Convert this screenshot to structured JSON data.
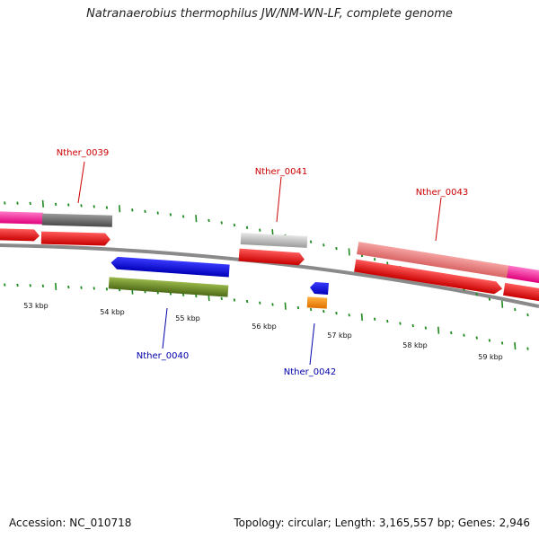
{
  "title": "Natranaerobius thermophilus JW/NM-WN-LF, complete genome",
  "footer": {
    "accession": "Accession: NC_010718",
    "summary": "Topology: circular; Length: 3,165,557 bp; Genes: 2,946"
  },
  "colors": {
    "background": "#ffffff",
    "tick": "#1f8a1f",
    "backbone": "#8a8a8a",
    "label_top": "#cc0000",
    "label_bottom": "#0000aa"
  },
  "kbp_labels": [
    "53 kbp",
    "54 kbp",
    "55 kbp",
    "56 kbp",
    "57 kbp",
    "58 kbp",
    "59 kbp"
  ],
  "gene_labels": [
    "Nther_0039",
    "Nther_0040",
    "Nther_0041",
    "Nther_0042",
    "Nther_0043"
  ]
}
